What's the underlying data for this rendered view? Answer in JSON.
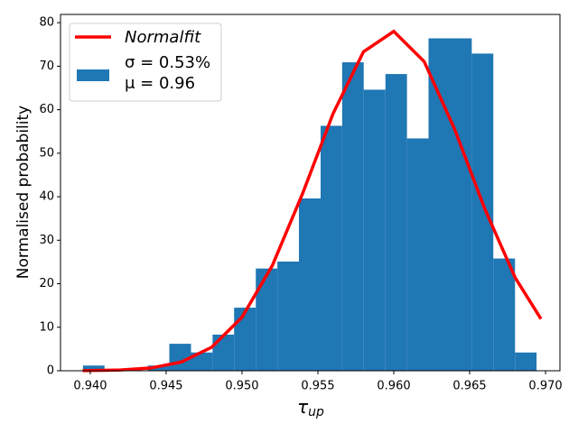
{
  "chart_data": {
    "type": "histogram",
    "y_label": "Normalised probability",
    "x_label": "τ",
    "x_label_subscript": "up",
    "xlim": [
      0.93804,
      0.97095
    ],
    "ylim": [
      0,
      81.9
    ],
    "xticks": [
      {
        "value": 0.94,
        "label": "0.940"
      },
      {
        "value": 0.945,
        "label": "0.945"
      },
      {
        "value": 0.95,
        "label": "0.950"
      },
      {
        "value": 0.955,
        "label": "0.955"
      },
      {
        "value": 0.96,
        "label": "0.960"
      },
      {
        "value": 0.965,
        "label": "0.965"
      },
      {
        "value": 0.97,
        "label": "0.970"
      }
    ],
    "yticks": [
      0,
      10,
      20,
      30,
      40,
      50,
      60,
      70,
      80
    ],
    "legend": "upper left",
    "series": [
      {
        "name": [
          "σ = 0.53%",
          "μ = 0.96"
        ],
        "type": "histogram",
        "color": "#1f77b4",
        "bins": [
          0.93952,
          0.94094,
          0.94237,
          0.94379,
          0.94521,
          0.94664,
          0.94806,
          0.94948,
          0.95091,
          0.95233,
          0.95375,
          0.95518,
          0.9566,
          0.95802,
          0.95945,
          0.96087,
          0.96229,
          0.96372,
          0.96514,
          0.96656,
          0.96799,
          0.96941
        ],
        "values": [
          1.2,
          0,
          0,
          1.2,
          6.2,
          4.2,
          8.3,
          14.5,
          23.5,
          25.1,
          39.6,
          56.3,
          70.9,
          64.6,
          68.2,
          53.4,
          76.4,
          76.4,
          72.9,
          25.8,
          4.2
        ]
      },
      {
        "name": "Normalfit",
        "type": "line",
        "color": "#ff0000",
        "x": [
          0.9395,
          0.942,
          0.944,
          0.946,
          0.948,
          0.95,
          0.952,
          0.954,
          0.956,
          0.958,
          0.96,
          0.962,
          0.964,
          0.966,
          0.968,
          0.9697
        ],
        "values": [
          0.03,
          0.18,
          0.64,
          2.0,
          5.4,
          12.3,
          24.2,
          40.8,
          59.1,
          73.3,
          78,
          71.1,
          55.6,
          37.2,
          21.4,
          11.9
        ]
      }
    ]
  }
}
